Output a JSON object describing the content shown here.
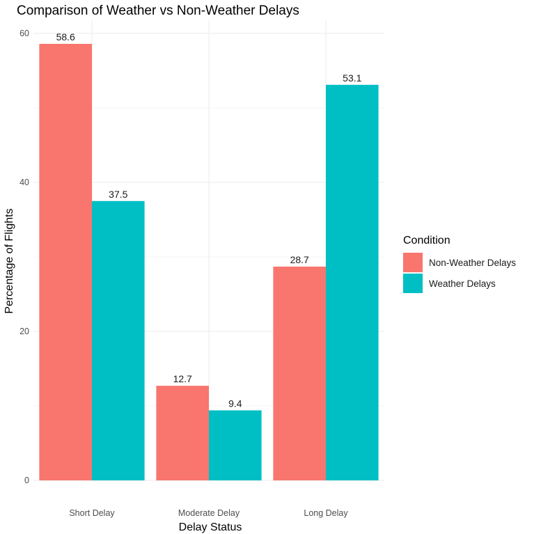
{
  "chart_data": {
    "type": "bar",
    "title": "Comparison of Weather vs Non-Weather Delays",
    "xlabel": "Delay Status",
    "ylabel": "Percentage of Flights",
    "categories": [
      "Short Delay",
      "Moderate Delay",
      "Long Delay"
    ],
    "series": [
      {
        "name": "Non-Weather Delays",
        "color": "#F8766D",
        "values": [
          58.6,
          12.7,
          28.7
        ]
      },
      {
        "name": "Weather Delays",
        "color": "#00BFC4",
        "values": [
          37.5,
          9.4,
          53.1
        ]
      }
    ],
    "ylim": [
      0,
      60
    ],
    "yticks": [
      0,
      20,
      40,
      60
    ],
    "grid": true,
    "legend": {
      "title": "Condition",
      "position": "right"
    }
  }
}
